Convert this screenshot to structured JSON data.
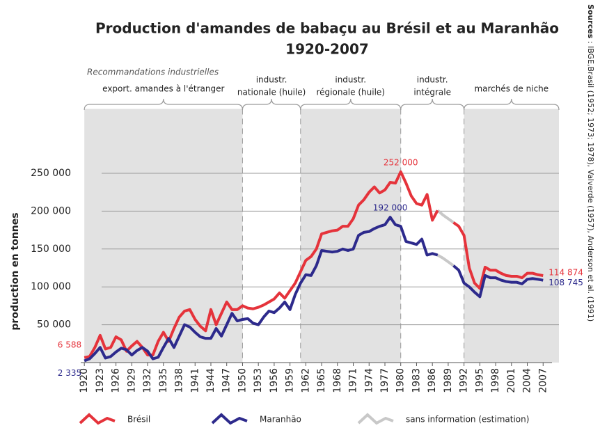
{
  "chart_data": {
    "type": "line",
    "title": "Production d'amandes de babaçu au  Brésil et au Maranhão",
    "subtitle": "1920-2007",
    "y_label": "production en tonnes",
    "sources_label": "Sources",
    "sources": " : IBGE,Brasil (1952; 1973; 1978), Valverde (1957), Anderson et al. (1991)",
    "periods_title": "Recommandations industrielles",
    "periods": [
      {
        "label": [
          "export. amandes à l'étranger"
        ],
        "start": 1920,
        "end": 1950,
        "shaded": true
      },
      {
        "label": [
          "industr.",
          "nationale (huile)"
        ],
        "start": 1950,
        "end": 1961,
        "shaded": false
      },
      {
        "label": [
          "industr.",
          "régionale (huile)"
        ],
        "start": 1961,
        "end": 1980,
        "shaded": true
      },
      {
        "label": [
          "industr.",
          "intégrale"
        ],
        "start": 1980,
        "end": 1992,
        "shaded": false
      },
      {
        "label": [
          "marchés de niche"
        ],
        "start": 1992,
        "end": 2010,
        "shaded": true
      }
    ],
    "x": [
      1920,
      1921,
      1922,
      1923,
      1924,
      1925,
      1926,
      1927,
      1928,
      1929,
      1930,
      1931,
      1932,
      1933,
      1934,
      1935,
      1936,
      1937,
      1938,
      1939,
      1940,
      1941,
      1942,
      1943,
      1944,
      1945,
      1946,
      1947,
      1948,
      1949,
      1950,
      1951,
      1952,
      1953,
      1954,
      1955,
      1956,
      1957,
      1958,
      1959,
      1960,
      1961,
      1962,
      1963,
      1964,
      1965,
      1966,
      1967,
      1968,
      1969,
      1970,
      1971,
      1972,
      1973,
      1974,
      1975,
      1976,
      1977,
      1978,
      1979,
      1980,
      1981,
      1982,
      1983,
      1984,
      1985,
      1986,
      1987,
      1988,
      1989,
      1990,
      1991,
      1992,
      1993,
      1994,
      1995,
      1996,
      1997,
      1998,
      1999,
      2000,
      2001,
      2002,
      2003,
      2004,
      2005,
      2006,
      2007
    ],
    "series": [
      {
        "name": "Brésil",
        "color": "#e5333b",
        "values": [
          6588,
          8000,
          20000,
          36000,
          18000,
          20000,
          34000,
          30000,
          15000,
          22000,
          28000,
          20000,
          10000,
          10000,
          28000,
          40000,
          28000,
          45000,
          60000,
          68000,
          70000,
          57000,
          48000,
          42000,
          70000,
          50000,
          65000,
          80000,
          70000,
          70000,
          75000,
          72000,
          71000,
          73000,
          76000,
          80000,
          84000,
          92000,
          85000,
          95000,
          105000,
          120000,
          135000,
          140000,
          150000,
          170000,
          172000,
          174000,
          175000,
          180000,
          180000,
          190000,
          208000,
          215000,
          225000,
          232000,
          224000,
          228000,
          238000,
          237000,
          252000,
          237000,
          220000,
          210000,
          208000,
          222000,
          188000,
          201000,
          null,
          null,
          185000,
          180000,
          168000,
          125000,
          105000,
          98000,
          126000,
          122000,
          122000,
          118000,
          115000,
          114000,
          114000,
          112000,
          118000,
          118000,
          116000,
          114874
        ]
      },
      {
        "name": "Maranhão",
        "color": "#2d2a8c",
        "values": [
          2335,
          5000,
          12000,
          20000,
          6000,
          8000,
          14000,
          19000,
          17000,
          10000,
          16000,
          20000,
          15000,
          5000,
          7000,
          20000,
          32000,
          20000,
          35000,
          50000,
          47000,
          40000,
          34000,
          32000,
          32000,
          45000,
          35000,
          50000,
          65000,
          55000,
          57000,
          58000,
          52000,
          50000,
          60000,
          68000,
          66000,
          72000,
          80000,
          70000,
          90000,
          105000,
          116000,
          115000,
          128000,
          148000,
          147000,
          146000,
          147000,
          150000,
          148000,
          150000,
          168000,
          172000,
          173000,
          177000,
          180000,
          182000,
          192000,
          182000,
          180000,
          160000,
          158000,
          156000,
          163000,
          142000,
          144000,
          142000,
          null,
          null,
          128000,
          122000,
          105000,
          100000,
          93000,
          87000,
          115000,
          112000,
          112000,
          109000,
          107000,
          106000,
          106000,
          104000,
          110000,
          111000,
          110000,
          108745
        ]
      }
    ],
    "estimation": {
      "name": "sans information (estimation)",
      "color": "#c8c8c8",
      "x": [
        1987,
        1988,
        1989,
        1990
      ],
      "series": [
        [
          201000,
          195000,
          190000,
          185000
        ],
        [
          142000,
          138000,
          133000,
          128000
        ]
      ]
    },
    "annotations": [
      {
        "label": "252 000",
        "x": 1980,
        "value": 252000,
        "series": 0
      },
      {
        "label": "192 000",
        "x": 1978,
        "value": 192000,
        "series": 1
      },
      {
        "label": "114 874",
        "x": 2007,
        "value": 114874,
        "series": 0
      },
      {
        "label": "108 745",
        "x": 2007,
        "value": 108745,
        "series": 1
      },
      {
        "label": "6 588",
        "x": 1920,
        "value": 6588,
        "series": 0
      },
      {
        "label": "2 335",
        "x": 1920,
        "value": 2335,
        "series": 1
      }
    ],
    "xlim": [
      1918,
      2010
    ],
    "xticks": [
      1920,
      1923,
      1926,
      1929,
      1932,
      1935,
      1938,
      1941,
      1944,
      1947,
      1950,
      1953,
      1956,
      1959,
      1962,
      1965,
      1968,
      1971,
      1974,
      1977,
      1980,
      1983,
      1986,
      1989,
      1992,
      1995,
      1998,
      2001,
      2004,
      2007
    ],
    "ylim": [
      0,
      335000
    ],
    "yticks": [
      {
        "value": 50000,
        "label": "50 000"
      },
      {
        "value": 100000,
        "label": "100 000"
      },
      {
        "value": 150000,
        "label": "150 000"
      },
      {
        "value": 200000,
        "label": "200 000"
      },
      {
        "value": 250000,
        "label": "250 000"
      }
    ],
    "grid": true
  }
}
